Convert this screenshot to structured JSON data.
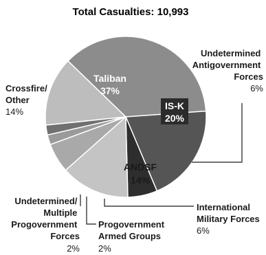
{
  "chart_data": {
    "type": "pie",
    "title": "Total Casualties: 10,993",
    "slices": [
      {
        "label": "Taliban",
        "value": 37,
        "value_label": "37%",
        "color": "#8c8c8c",
        "text_color": "#ffffff"
      },
      {
        "label": "IS-K",
        "value": 20,
        "value_label": "20%",
        "color": "#555555",
        "text_color": "#ffffff"
      },
      {
        "label": "Undetermined Antigovernment Forces",
        "value": 6,
        "value_label": "6%",
        "color": "#2e2e2e",
        "text_color": "#1a1a1a"
      },
      {
        "label": "ANDSF",
        "value": 14,
        "value_label": "14%",
        "color": "#c4c4c4",
        "text_color": "#1a1a1a"
      },
      {
        "label": "International Military Forces",
        "value": 6,
        "value_label": "6%",
        "color": "#a9a9a9",
        "text_color": "#1a1a1a"
      },
      {
        "label": "Progovernment Armed Groups",
        "value": 2,
        "value_label": "2%",
        "color": "#9a9a9a",
        "text_color": "#1a1a1a"
      },
      {
        "label": "Undetermined/ Multiple Progovernment Forces",
        "value": 2,
        "value_label": "2%",
        "color": "#707070",
        "text_color": "#1a1a1a"
      },
      {
        "label": "Crossfire/ Other",
        "value": 14,
        "value_label": "14%",
        "color": "#bdbdbd",
        "text_color": "#1a1a1a"
      }
    ]
  },
  "outside_labels": {
    "undetermined_anti": {
      "lines": [
        "Undetermined",
        "Antigovernment",
        "Forces"
      ],
      "value": "6%"
    },
    "international": {
      "lines": [
        "International",
        "Military Forces"
      ],
      "value": "6%"
    },
    "progov_armed": {
      "lines": [
        "Progovernment",
        "Armed Groups"
      ],
      "value": "2%"
    },
    "undetermined_pro": {
      "lines": [
        "Undetermined/",
        "Multiple",
        "Progovernment",
        "Forces"
      ],
      "value": "2%"
    },
    "crossfire": {
      "lines": [
        "Crossfire/",
        "Other"
      ],
      "value": "14%"
    }
  }
}
